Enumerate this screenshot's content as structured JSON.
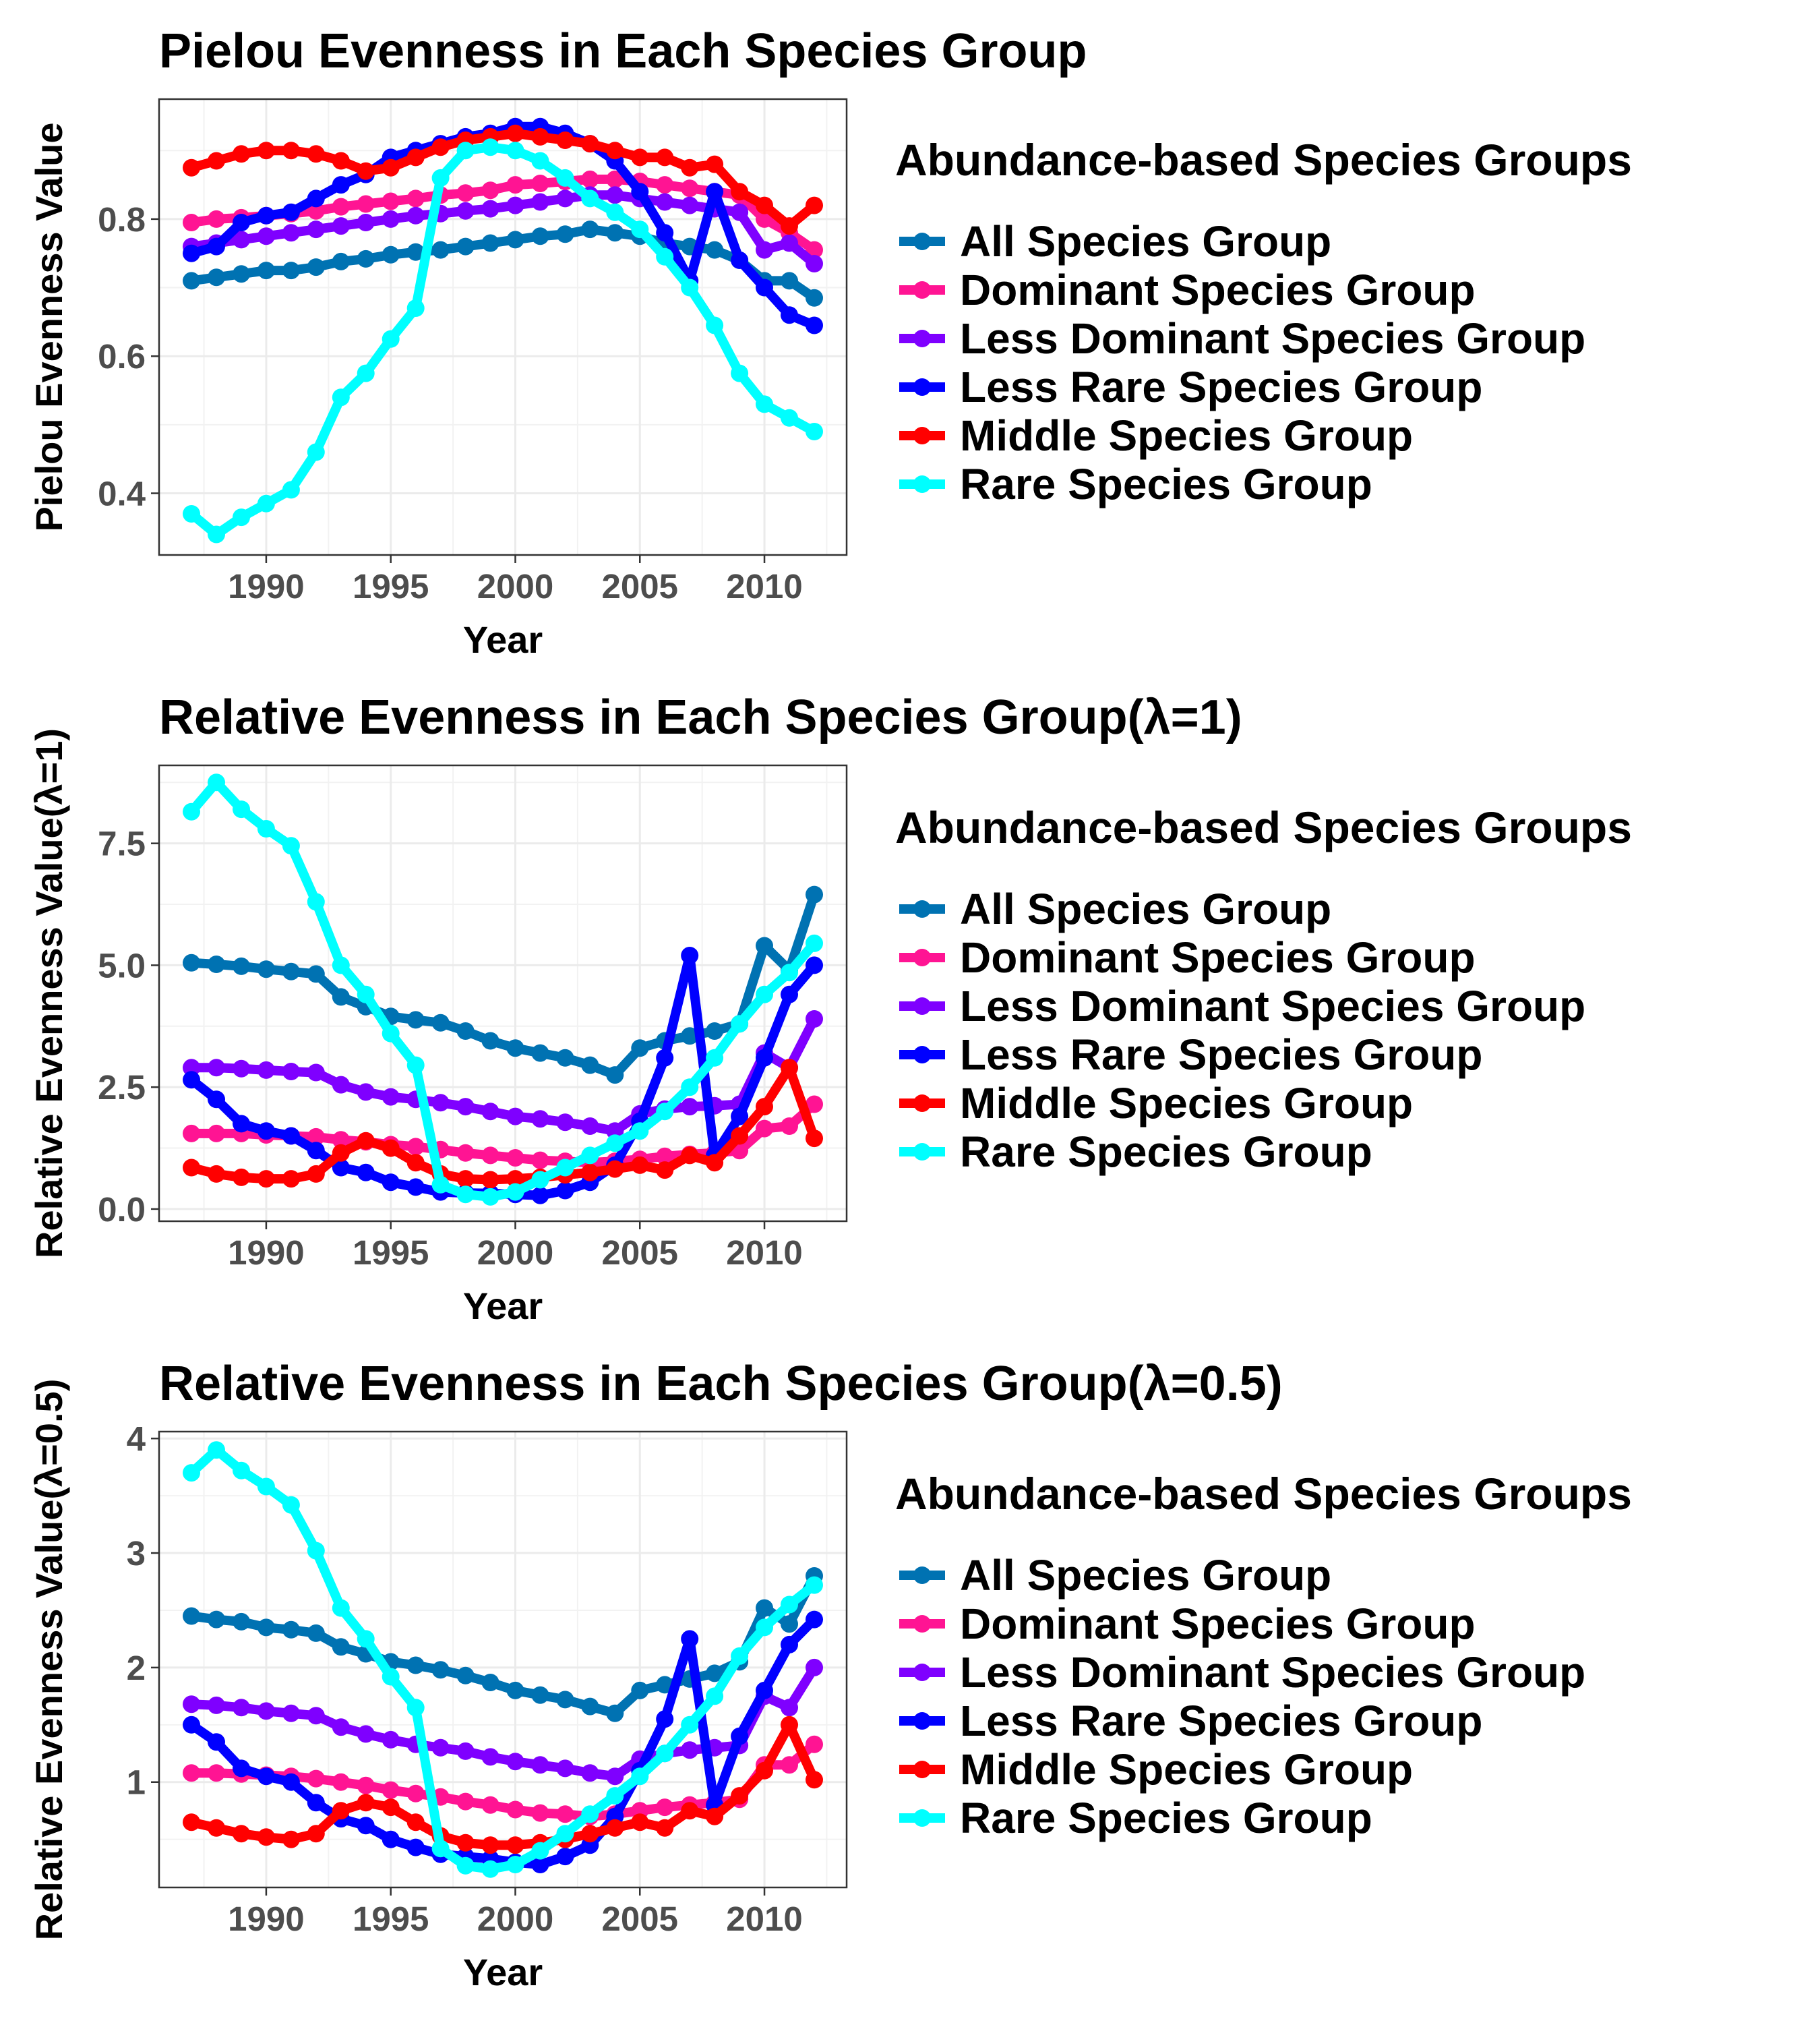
{
  "legend": {
    "title": "Abundance-based Species Groups",
    "items": [
      {
        "label": "All Species Group",
        "color": "#0072B2"
      },
      {
        "label": "Dominant Species Group",
        "color": "#FF1493"
      },
      {
        "label": "Less Dominant Species Group",
        "color": "#7F00FF"
      },
      {
        "label": "Less Rare Species Group",
        "color": "#0000FF"
      },
      {
        "label": "Middle Species Group",
        "color": "#FF0000"
      },
      {
        "label": "Rare Species Group",
        "color": "#00FFFF"
      }
    ]
  },
  "chart_data": [
    {
      "type": "line",
      "title": "Pielou Evenness in Each Species Group",
      "xlabel": "Year",
      "ylabel": "Pielou Evenness Value",
      "xlim": [
        1985.7,
        2013.3
      ],
      "ylim": [
        0.31,
        0.975
      ],
      "xticks": [
        1990,
        1995,
        2000,
        2005,
        2010
      ],
      "yticks": [
        0.4,
        0.6,
        0.8
      ],
      "ytick_labels": [
        "0.4",
        "0.6",
        "0.8"
      ],
      "grid": true,
      "legend_position": "right",
      "x": [
        1987,
        1988,
        1989,
        1990,
        1991,
        1992,
        1993,
        1994,
        1995,
        1996,
        1997,
        1998,
        1999,
        2000,
        2001,
        2002,
        2003,
        2004,
        2005,
        2006,
        2007,
        2008,
        2009,
        2010,
        2011,
        2012
      ],
      "series": [
        {
          "name": "All Species Group",
          "values": [
            0.71,
            0.715,
            0.72,
            0.725,
            0.725,
            0.73,
            0.738,
            0.742,
            0.748,
            0.752,
            0.755,
            0.76,
            0.765,
            0.77,
            0.775,
            0.778,
            0.785,
            0.78,
            0.775,
            0.765,
            0.76,
            0.755,
            0.74,
            0.71,
            0.71,
            0.685
          ]
        },
        {
          "name": "Dominant Species Group",
          "values": [
            0.795,
            0.8,
            0.802,
            0.805,
            0.808,
            0.812,
            0.818,
            0.822,
            0.826,
            0.83,
            0.835,
            0.838,
            0.842,
            0.85,
            0.852,
            0.855,
            0.858,
            0.858,
            0.855,
            0.85,
            0.845,
            0.84,
            0.835,
            0.8,
            0.78,
            0.755
          ]
        },
        {
          "name": "Less Dominant Species Group",
          "values": [
            0.76,
            0.765,
            0.77,
            0.775,
            0.78,
            0.785,
            0.79,
            0.795,
            0.8,
            0.805,
            0.808,
            0.812,
            0.815,
            0.82,
            0.825,
            0.83,
            0.835,
            0.835,
            0.83,
            0.825,
            0.82,
            0.815,
            0.81,
            0.755,
            0.765,
            0.735
          ]
        },
        {
          "name": "Less Rare Species Group",
          "values": [
            0.75,
            0.76,
            0.795,
            0.805,
            0.81,
            0.83,
            0.85,
            0.865,
            0.89,
            0.9,
            0.91,
            0.92,
            0.925,
            0.935,
            0.935,
            0.925,
            0.91,
            0.885,
            0.84,
            0.78,
            0.71,
            0.84,
            0.74,
            0.7,
            0.66,
            0.645
          ]
        },
        {
          "name": "Middle Species Group",
          "values": [
            0.875,
            0.885,
            0.895,
            0.9,
            0.9,
            0.895,
            0.885,
            0.87,
            0.875,
            0.89,
            0.905,
            0.915,
            0.92,
            0.925,
            0.92,
            0.915,
            0.91,
            0.9,
            0.89,
            0.89,
            0.875,
            0.88,
            0.84,
            0.82,
            0.79,
            0.82
          ]
        },
        {
          "name": "Rare Species Group",
          "values": [
            0.37,
            0.34,
            0.365,
            0.385,
            0.405,
            0.46,
            0.54,
            0.575,
            0.625,
            0.67,
            0.86,
            0.9,
            0.905,
            0.9,
            0.885,
            0.86,
            0.83,
            0.81,
            0.785,
            0.745,
            0.7,
            0.645,
            0.575,
            0.53,
            0.51,
            0.49
          ]
        }
      ]
    },
    {
      "type": "line",
      "title": "Relative Evenness in Each Species Group(λ=1)",
      "xlabel": "Year",
      "ylabel": "Relative Evenness Value(λ=1)",
      "xlim": [
        1985.7,
        2013.3
      ],
      "ylim": [
        -0.25,
        9.1
      ],
      "xticks": [
        1990,
        1995,
        2000,
        2005,
        2010
      ],
      "yticks": [
        0,
        2.5,
        5,
        7.5
      ],
      "ytick_labels": [
        "0.0",
        "2.5",
        "5.0",
        "7.5"
      ],
      "grid": true,
      "legend_position": "right",
      "x": [
        1987,
        1988,
        1989,
        1990,
        1991,
        1992,
        1993,
        1994,
        1995,
        1996,
        1997,
        1998,
        1999,
        2000,
        2001,
        2002,
        2003,
        2004,
        2005,
        2006,
        2007,
        2008,
        2009,
        2010,
        2011,
        2012
      ],
      "series": [
        {
          "name": "All Species Group",
          "values": [
            5.05,
            5.02,
            4.98,
            4.92,
            4.87,
            4.82,
            4.35,
            4.15,
            3.95,
            3.88,
            3.82,
            3.65,
            3.45,
            3.3,
            3.2,
            3.1,
            2.95,
            2.75,
            3.3,
            3.45,
            3.55,
            3.65,
            3.8,
            5.4,
            4.9,
            6.45
          ]
        },
        {
          "name": "Dominant Species Group",
          "values": [
            1.55,
            1.55,
            1.55,
            1.52,
            1.5,
            1.48,
            1.42,
            1.38,
            1.32,
            1.28,
            1.22,
            1.15,
            1.1,
            1.05,
            1.0,
            0.98,
            0.95,
            0.98,
            1.02,
            1.08,
            1.12,
            1.15,
            1.2,
            1.65,
            1.7,
            2.15
          ]
        },
        {
          "name": "Less Dominant Species Group",
          "values": [
            2.9,
            2.9,
            2.88,
            2.85,
            2.82,
            2.8,
            2.55,
            2.4,
            2.3,
            2.25,
            2.18,
            2.1,
            2.0,
            1.9,
            1.85,
            1.78,
            1.7,
            1.6,
            1.95,
            2.05,
            2.1,
            2.12,
            2.15,
            3.2,
            2.9,
            3.9
          ]
        },
        {
          "name": "Less Rare Species Group",
          "values": [
            2.65,
            2.25,
            1.75,
            1.6,
            1.5,
            1.2,
            0.85,
            0.75,
            0.55,
            0.45,
            0.35,
            0.33,
            0.32,
            0.3,
            0.28,
            0.38,
            0.55,
            0.9,
            1.8,
            3.1,
            5.2,
            1.1,
            1.9,
            3.1,
            4.4,
            5.0
          ]
        },
        {
          "name": "Middle Species Group",
          "values": [
            0.85,
            0.72,
            0.65,
            0.62,
            0.62,
            0.72,
            1.15,
            1.4,
            1.25,
            0.95,
            0.72,
            0.62,
            0.6,
            0.62,
            0.65,
            0.7,
            0.75,
            0.82,
            0.9,
            0.8,
            1.1,
            0.95,
            1.5,
            2.1,
            2.9,
            1.45
          ]
        },
        {
          "name": "Rare Species Group",
          "values": [
            8.15,
            8.75,
            8.2,
            7.8,
            7.45,
            6.3,
            5.0,
            4.4,
            3.6,
            2.95,
            0.5,
            0.3,
            0.25,
            0.35,
            0.6,
            0.85,
            1.1,
            1.35,
            1.6,
            2.0,
            2.5,
            3.1,
            3.8,
            4.4,
            4.85,
            5.45
          ]
        }
      ]
    },
    {
      "type": "line",
      "title": "Relative Evenness in Each Species Group(λ=0.5)",
      "xlabel": "Year",
      "ylabel": "Relative Evenness Value(λ=0.5)",
      "xlim": [
        1985.7,
        2013.3
      ],
      "ylim": [
        0.08,
        4.06
      ],
      "xticks": [
        1990,
        1995,
        2000,
        2005,
        2010
      ],
      "yticks": [
        1,
        2,
        3,
        4
      ],
      "ytick_labels": [
        "1",
        "2",
        "3",
        "4"
      ],
      "grid": true,
      "legend_position": "right",
      "x": [
        1987,
        1988,
        1989,
        1990,
        1991,
        1992,
        1993,
        1994,
        1995,
        1996,
        1997,
        1998,
        1999,
        2000,
        2001,
        2002,
        2003,
        2004,
        2005,
        2006,
        2007,
        2008,
        2009,
        2010,
        2011,
        2012
      ],
      "series": [
        {
          "name": "All Species Group",
          "values": [
            2.45,
            2.42,
            2.4,
            2.35,
            2.33,
            2.3,
            2.18,
            2.12,
            2.05,
            2.02,
            1.98,
            1.93,
            1.87,
            1.8,
            1.76,
            1.72,
            1.66,
            1.6,
            1.8,
            1.85,
            1.9,
            1.95,
            2.05,
            2.52,
            2.38,
            2.8
          ]
        },
        {
          "name": "Dominant Species Group",
          "values": [
            1.08,
            1.08,
            1.07,
            1.06,
            1.05,
            1.03,
            1.0,
            0.97,
            0.93,
            0.9,
            0.87,
            0.83,
            0.8,
            0.76,
            0.73,
            0.72,
            0.7,
            0.72,
            0.75,
            0.78,
            0.8,
            0.82,
            0.85,
            1.15,
            1.15,
            1.33
          ]
        },
        {
          "name": "Less Dominant Species Group",
          "values": [
            1.68,
            1.67,
            1.65,
            1.62,
            1.6,
            1.58,
            1.48,
            1.42,
            1.37,
            1.33,
            1.3,
            1.27,
            1.22,
            1.18,
            1.15,
            1.12,
            1.08,
            1.05,
            1.2,
            1.25,
            1.28,
            1.3,
            1.32,
            1.75,
            1.65,
            2.0
          ]
        },
        {
          "name": "Less Rare Species Group",
          "values": [
            1.5,
            1.35,
            1.12,
            1.05,
            1.0,
            0.82,
            0.68,
            0.62,
            0.5,
            0.43,
            0.37,
            0.35,
            0.33,
            0.3,
            0.28,
            0.35,
            0.45,
            0.7,
            1.1,
            1.55,
            2.25,
            0.8,
            1.4,
            1.8,
            2.2,
            2.42
          ]
        },
        {
          "name": "Middle Species Group",
          "values": [
            0.65,
            0.6,
            0.55,
            0.52,
            0.5,
            0.55,
            0.75,
            0.82,
            0.78,
            0.65,
            0.53,
            0.47,
            0.45,
            0.45,
            0.47,
            0.5,
            0.55,
            0.6,
            0.65,
            0.6,
            0.75,
            0.7,
            0.88,
            1.1,
            1.5,
            1.02
          ]
        },
        {
          "name": "Rare Species Group",
          "values": [
            3.7,
            3.9,
            3.72,
            3.58,
            3.42,
            3.02,
            2.52,
            2.25,
            1.92,
            1.65,
            0.42,
            0.27,
            0.24,
            0.28,
            0.4,
            0.55,
            0.72,
            0.88,
            1.05,
            1.25,
            1.5,
            1.75,
            2.1,
            2.35,
            2.55,
            2.72
          ]
        }
      ]
    }
  ]
}
